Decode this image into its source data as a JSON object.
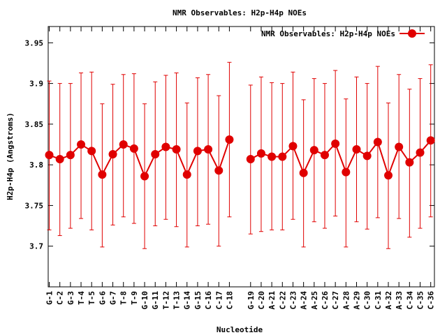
{
  "chart_data": {
    "type": "line",
    "title": "NMR Observables: H2p-H4p NOEs",
    "xlabel": "Nucleotide",
    "ylabel": "H2p-H4p (Angstroms)",
    "ylim": [
      3.65,
      3.97
    ],
    "y_ticks": [
      3.7,
      3.75,
      3.8,
      3.85,
      3.9,
      3.95
    ],
    "grid": false,
    "legend_position": "top-right",
    "series": [
      {
        "name": "NMR Observables: H2p-H4p NOEs",
        "color": "#e00000",
        "segments": [
          {
            "categories": [
              "G-1",
              "C-2",
              "G-3",
              "T-4",
              "T-5",
              "G-6",
              "G-7",
              "T-8",
              "T-9",
              "G-10",
              "G-11",
              "T-12",
              "T-13",
              "G-14",
              "G-15",
              "C-16",
              "C-17",
              "C-18"
            ],
            "x": [
              1,
              2,
              3,
              4,
              5,
              6,
              7,
              8,
              9,
              10,
              11,
              12,
              13,
              14,
              15,
              16,
              17,
              18
            ],
            "values": [
              3.812,
              3.807,
              3.812,
              3.825,
              3.817,
              3.788,
              3.813,
              3.825,
              3.82,
              3.786,
              3.813,
              3.822,
              3.819,
              3.788,
              3.817,
              3.819,
              3.793,
              3.831
            ],
            "error_low": [
              3.72,
              3.713,
              3.722,
              3.734,
              3.72,
              3.699,
              3.726,
              3.736,
              3.728,
              3.697,
              3.725,
              3.733,
              3.724,
              3.699,
              3.725,
              3.727,
              3.7,
              3.736
            ],
            "error_high": [
              3.903,
              3.9,
              3.9,
              3.913,
              3.914,
              3.875,
              3.899,
              3.911,
              3.912,
              3.875,
              3.902,
              3.91,
              3.913,
              3.876,
              3.907,
              3.911,
              3.885,
              3.926
            ]
          },
          {
            "categories": [
              "G-19",
              "C-20",
              "A-21",
              "C-22",
              "C-23",
              "A-24",
              "A-25",
              "C-26",
              "C-27",
              "A-28",
              "A-29",
              "C-30",
              "C-31",
              "A-32",
              "A-33",
              "C-34",
              "C-35",
              "C-36"
            ],
            "x": [
              20,
              21,
              22,
              23,
              24,
              25,
              26,
              27,
              28,
              29,
              30,
              31,
              32,
              33,
              34,
              35,
              36,
              37
            ],
            "values": [
              3.807,
              3.814,
              3.81,
              3.81,
              3.823,
              3.79,
              3.818,
              3.812,
              3.826,
              3.791,
              3.819,
              3.811,
              3.828,
              3.787,
              3.822,
              3.803,
              3.815,
              3.83
            ],
            "error_low": [
              3.715,
              3.718,
              3.72,
              3.72,
              3.733,
              3.699,
              3.73,
              3.722,
              3.737,
              3.699,
              3.73,
              3.721,
              3.735,
              3.697,
              3.734,
              3.711,
              3.722,
              3.736
            ],
            "error_high": [
              3.898,
              3.908,
              3.901,
              3.9,
              3.914,
              3.88,
              3.906,
              3.9,
              3.916,
              3.881,
              3.908,
              3.9,
              3.921,
              3.876,
              3.911,
              3.893,
              3.906,
              3.923
            ]
          }
        ]
      }
    ]
  }
}
